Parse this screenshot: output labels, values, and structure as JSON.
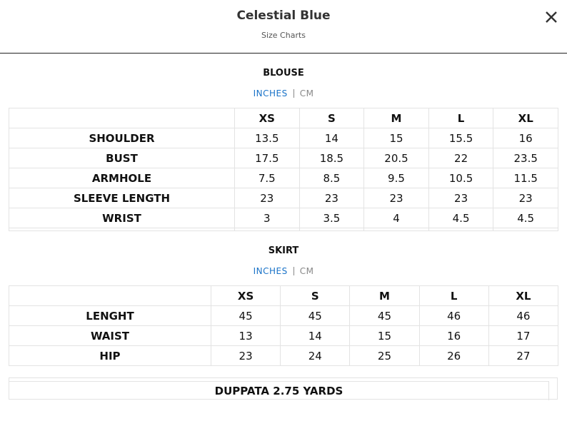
{
  "header": {
    "title": "Celestial Blue",
    "subtitle": "Size Charts"
  },
  "sections": [
    {
      "title": "BLOUSE",
      "tabs": [
        "INCHES",
        "CM"
      ],
      "columns": [
        "XS",
        "S",
        "M",
        "L",
        "XL"
      ],
      "rows": [
        {
          "label": "SHOULDER",
          "values": [
            "13.5",
            "14",
            "15",
            "15.5",
            "16"
          ]
        },
        {
          "label": "BUST",
          "values": [
            "17.5",
            "18.5",
            "20.5",
            "22",
            "23.5"
          ]
        },
        {
          "label": "ARMHOLE",
          "values": [
            "7.5",
            "8.5",
            "9.5",
            "10.5",
            "11.5"
          ]
        },
        {
          "label": "SLEEVE LENGTH",
          "values": [
            "23",
            "23",
            "23",
            "23",
            "23"
          ]
        },
        {
          "label": "WRIST",
          "values": [
            "3",
            "3.5",
            "4",
            "4.5",
            "4.5"
          ]
        }
      ]
    },
    {
      "title": "SKIRT",
      "tabs": [
        "INCHES",
        "CM"
      ],
      "columns": [
        "XS",
        "S",
        "M",
        "L",
        "XL"
      ],
      "rows": [
        {
          "label": "LENGHT",
          "values": [
            "45",
            "45",
            "45",
            "46",
            "46"
          ]
        },
        {
          "label": "WAIST",
          "values": [
            "13",
            "14",
            "15",
            "16",
            "17"
          ]
        },
        {
          "label": "HIP",
          "values": [
            "23",
            "24",
            "25",
            "26",
            "27"
          ]
        }
      ]
    }
  ],
  "footer_note": "DUPPATA 2.75 YARDS"
}
